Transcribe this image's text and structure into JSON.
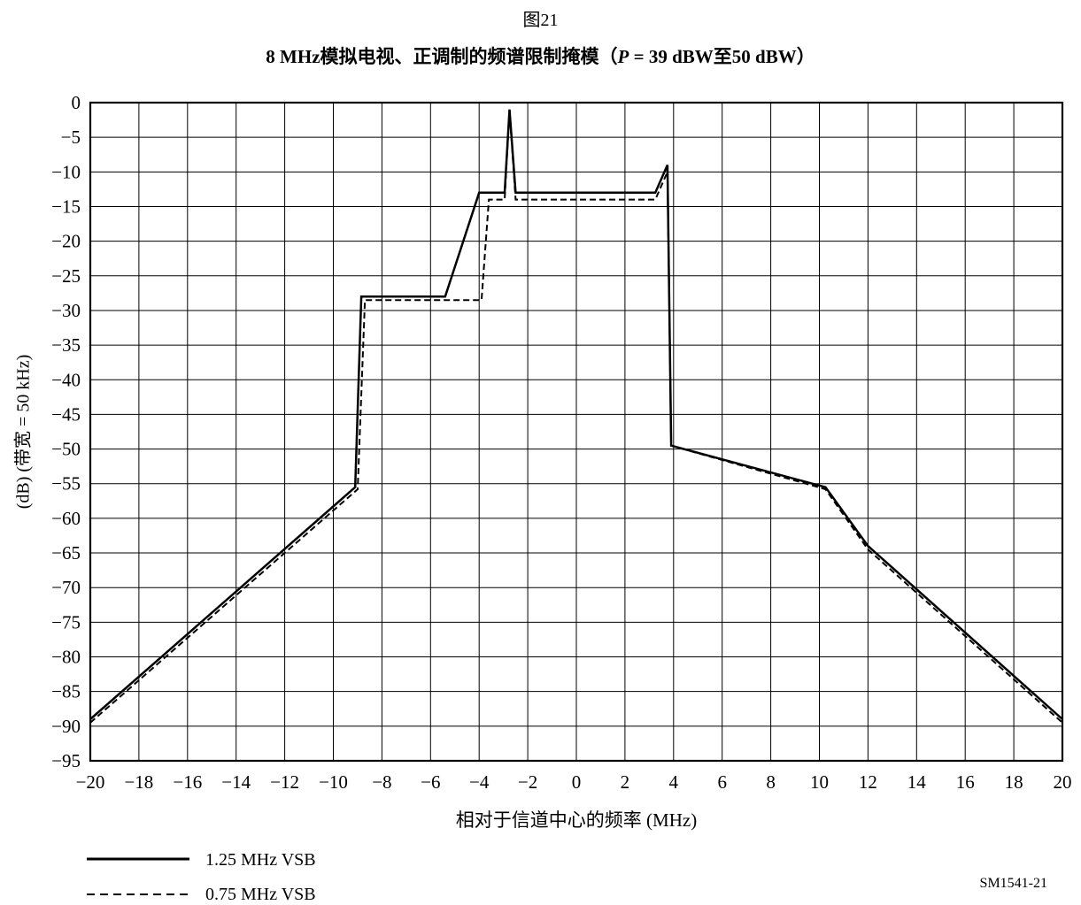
{
  "figure": {
    "number": "图21",
    "title_prefix": "8 MHz模拟电视、正调制的频谱限制掩模（",
    "title_p": "P",
    "title_suffix": " = 39 dBW至50 dBW）",
    "reference": "SM1541-21"
  },
  "chart_data": {
    "type": "line",
    "title": "8 MHz模拟电视、正调制的频谱限制掩模（P = 39 dBW至50 dBW）",
    "xlabel": "相对于信道中心的频率 (MHz)",
    "ylabel": "(dB) (带宽 = 50 kHz)",
    "xlim": [
      -20,
      20
    ],
    "ylim": [
      -95,
      0
    ],
    "xticks": [
      -20,
      -18,
      -16,
      -14,
      -12,
      -10,
      -8,
      -6,
      -4,
      -2,
      0,
      2,
      4,
      6,
      8,
      10,
      12,
      14,
      16,
      18,
      20
    ],
    "xtick_labels": [
      "−20",
      "−18",
      "−16",
      "−14",
      "−12",
      "−10",
      "−8",
      "−6",
      "−4",
      "−2",
      "0",
      "2",
      "4",
      "6",
      "8",
      "10",
      "12",
      "14",
      "16",
      "18",
      "20"
    ],
    "yticks": [
      0,
      -5,
      -10,
      -15,
      -20,
      -25,
      -30,
      -35,
      -40,
      -45,
      -50,
      -55,
      -60,
      -65,
      -70,
      -75,
      -80,
      -85,
      -90,
      -95
    ],
    "ytick_labels": [
      "0",
      "−5",
      "−10",
      "−15",
      "−20",
      "−25",
      "−30",
      "−35",
      "−40",
      "−45",
      "−50",
      "−55",
      "−60",
      "−65",
      "−70",
      "−75",
      "−80",
      "−85",
      "−90",
      "−95"
    ],
    "grid": true,
    "series": [
      {
        "name": "1.25 MHz VSB",
        "style": "solid",
        "x": [
          -20,
          -9.1,
          -8.85,
          -5.4,
          -4.0,
          -2.95,
          -2.75,
          -2.5,
          3.25,
          3.75,
          3.9,
          10.25,
          12.0,
          20
        ],
        "y": [
          -89,
          -55.5,
          -28,
          -28,
          -13,
          -13,
          -1,
          -13,
          -13,
          -9,
          -49.5,
          -55.5,
          -64,
          -89
        ]
      },
      {
        "name": "0.75 MHz VSB",
        "style": "dashed",
        "x": [
          -20,
          -9.0,
          -8.7,
          -3.9,
          -3.6,
          -2.95,
          -2.75,
          -2.5,
          3.25,
          3.75,
          3.9,
          10.25,
          12.0,
          20
        ],
        "y": [
          -89.5,
          -55.8,
          -28.5,
          -28.5,
          -14,
          -14,
          -1,
          -14,
          -14,
          -10,
          -49.5,
          -55.8,
          -64.5,
          -89.5
        ]
      }
    ],
    "annotations": [
      "SM1541-21"
    ]
  },
  "legend": {
    "items": [
      {
        "label": "1.25 MHz VSB",
        "style": "solid"
      },
      {
        "label": "0.75 MHz VSB",
        "style": "dashed"
      }
    ]
  }
}
